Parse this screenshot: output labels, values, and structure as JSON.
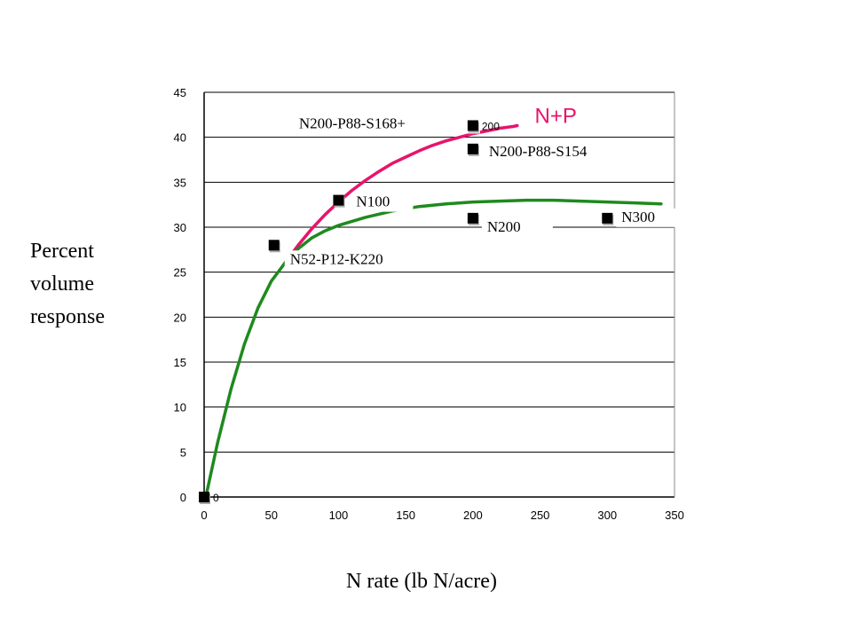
{
  "chart_data": {
    "type": "scatter",
    "title": "",
    "xlabel": "N rate (lb N/acre)",
    "ylabel_lines": [
      "Percent",
      "volume",
      "response"
    ],
    "xlim": [
      0,
      350
    ],
    "ylim": [
      0,
      45
    ],
    "xticks": [
      0,
      50,
      100,
      150,
      200,
      250,
      300,
      350
    ],
    "yticks": [
      0,
      5,
      10,
      15,
      20,
      25,
      30,
      35,
      40,
      45
    ],
    "grid": "horizontal",
    "points": [
      {
        "x": 0,
        "y": 0,
        "label": "",
        "tag": "0"
      },
      {
        "x": 52,
        "y": 28,
        "label": "N52-P12-K220",
        "tag": ""
      },
      {
        "x": 100,
        "y": 33,
        "label": "N100",
        "tag": ""
      },
      {
        "x": 200,
        "y": 41.3,
        "label": "N200-P88-S168+",
        "tag": "200"
      },
      {
        "x": 200,
        "y": 38.7,
        "label": "N200-P88-S154",
        "tag": ""
      },
      {
        "x": 200,
        "y": 31,
        "label": "N200",
        "tag": ""
      },
      {
        "x": 300,
        "y": 31,
        "label": "N300",
        "tag": ""
      }
    ],
    "series": [
      {
        "name": "N+P",
        "color": "#e8146c",
        "x": [
          60,
          70,
          80,
          90,
          100,
          110,
          120,
          130,
          140,
          150,
          160,
          170,
          180,
          190,
          200,
          210,
          220,
          230,
          233
        ],
        "y": [
          26,
          28,
          29.8,
          31.4,
          32.8,
          34.1,
          35.2,
          36.2,
          37.1,
          37.8,
          38.5,
          39.1,
          39.6,
          40.0,
          40.4,
          40.7,
          41.0,
          41.2,
          41.3
        ]
      },
      {
        "name": "",
        "color": "#1e8a1e",
        "x": [
          2,
          10,
          20,
          30,
          40,
          50,
          60,
          70,
          80,
          90,
          100,
          120,
          140,
          160,
          180,
          200,
          220,
          240,
          260,
          280,
          300,
          320,
          340
        ],
        "y": [
          0.5,
          6,
          12,
          17,
          21,
          24,
          26,
          27.6,
          28.8,
          29.6,
          30.2,
          31.1,
          31.8,
          32.3,
          32.6,
          32.8,
          32.9,
          33.0,
          33.0,
          32.9,
          32.8,
          32.7,
          32.6
        ]
      }
    ]
  }
}
